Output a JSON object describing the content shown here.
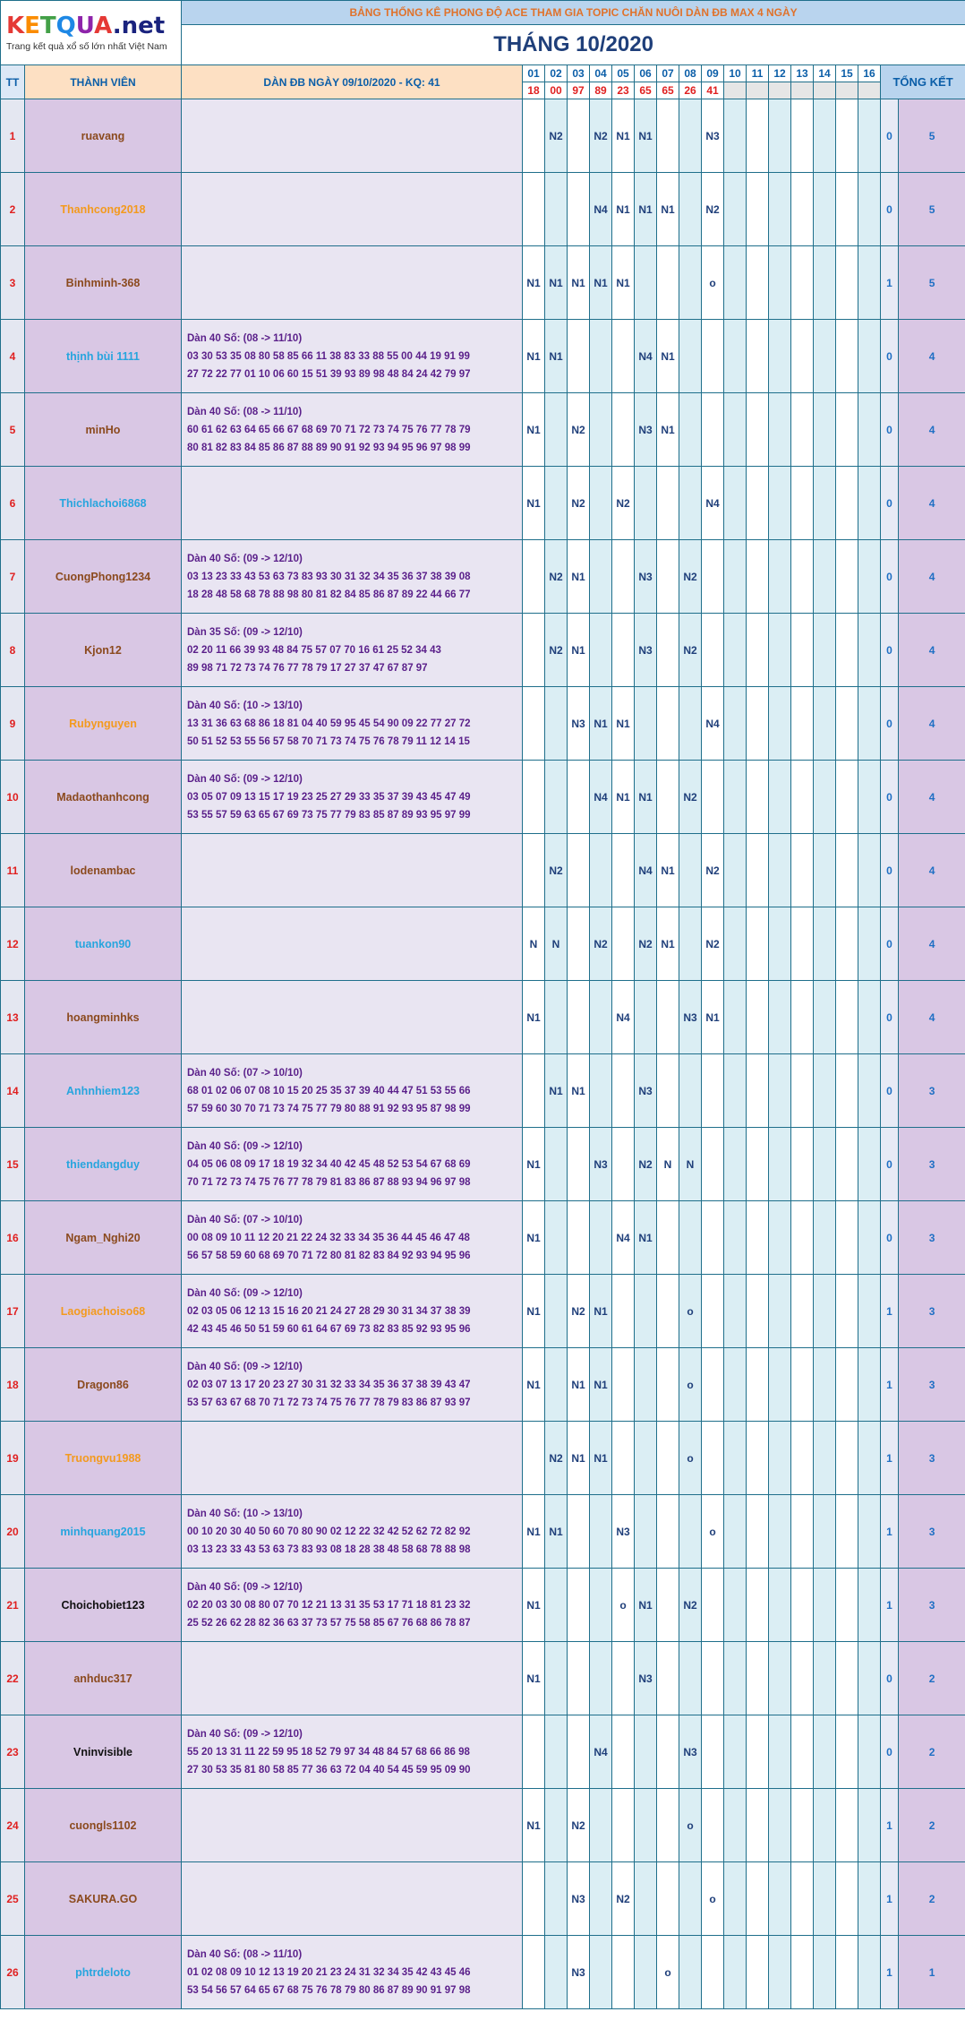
{
  "logo": {
    "text": "KETQUA.net",
    "letters": [
      {
        "ch": "K",
        "color": "#e53935"
      },
      {
        "ch": "E",
        "color": "#fb8c00"
      },
      {
        "ch": "T",
        "color": "#43a047"
      },
      {
        "ch": "Q",
        "color": "#1e88e5"
      },
      {
        "ch": "U",
        "color": "#8e24aa"
      },
      {
        "ch": "A",
        "color": "#e53935"
      },
      {
        "ch": ".net",
        "color": "#1a237e"
      }
    ],
    "tagline": "Trang kết quả xổ số lớn nhất Việt Nam"
  },
  "banner": "BẢNG THỐNG KÊ PHONG ĐỘ ACE THAM GIA TOPIC CHĂN NUÔI DÀN ĐB MAX 4 NGÀY",
  "month": "THÁNG 10/2020",
  "headers": {
    "tt": "TT",
    "member": "THÀNH VIÊN",
    "dan": "DÀN ĐB NGÀY 09/10/2020 - KQ: 41",
    "total": "TỔNG KẾT"
  },
  "days": [
    "01",
    "02",
    "03",
    "04",
    "05",
    "06",
    "07",
    "08",
    "09",
    "10",
    "11",
    "12",
    "13",
    "14",
    "15",
    "16"
  ],
  "results": [
    "18",
    "00",
    "97",
    "89",
    "23",
    "65",
    "65",
    "26",
    "41",
    "",
    "",
    "",
    "",
    "",
    "",
    ""
  ],
  "rows": [
    {
      "tt": "1",
      "name": "ruavang",
      "color": "brown",
      "dan_header": "",
      "dan_numbers": "",
      "marks": [
        "",
        "N2",
        "",
        "N2",
        "N1",
        "N1",
        "",
        "",
        "N3",
        "",
        "",
        "",
        "",
        "",
        "",
        ""
      ],
      "win": "0",
      "total": "5"
    },
    {
      "tt": "2",
      "name": "Thanhcong2018",
      "color": "orange",
      "dan_header": "",
      "dan_numbers": "",
      "marks": [
        "",
        "",
        "",
        "N4",
        "N1",
        "N1",
        "N1",
        "",
        "N2",
        "",
        "",
        "",
        "",
        "",
        "",
        ""
      ],
      "win": "0",
      "total": "5"
    },
    {
      "tt": "3",
      "name": "Binhminh-368",
      "color": "brown",
      "dan_header": "",
      "dan_numbers": "",
      "marks": [
        "N1",
        "N1",
        "N1",
        "N1",
        "N1",
        "",
        "",
        "",
        "o",
        "",
        "",
        "",
        "",
        "",
        "",
        ""
      ],
      "win": "1",
      "total": "5"
    },
    {
      "tt": "4",
      "name": "thịnh bùi 1111",
      "color": "blue",
      "dan_header": "Dàn 40 Số: (08 -> 11/10)",
      "dan_numbers": "03 30 53 35 08 80 58 85 66 11 38 83 33 88 55 00 44 19 91 99 27 72 22 77 01 10 06 60 15 51 39 93 89 98 48 84 24 42 79 97",
      "marks": [
        "N1",
        "N1",
        "",
        "",
        "",
        "N4",
        "N1",
        "",
        "",
        "",
        "",
        "",
        "",
        "",
        "",
        ""
      ],
      "win": "0",
      "total": "4"
    },
    {
      "tt": "5",
      "name": "minHo",
      "color": "brown",
      "dan_header": "Dàn 40 Số: (08 -> 11/10)",
      "dan_numbers": "60 61 62 63 64 65 66 67 68 69 70 71 72 73 74 75 76 77 78 79 80 81 82 83 84 85 86 87 88 89 90 91 92 93 94 95 96 97 98 99",
      "marks": [
        "N1",
        "",
        "N2",
        "",
        "",
        "N3",
        "N1",
        "",
        "",
        "",
        "",
        "",
        "",
        "",
        "",
        ""
      ],
      "win": "0",
      "total": "4"
    },
    {
      "tt": "6",
      "name": "Thichlachoi6868",
      "color": "blue",
      "dan_header": "",
      "dan_numbers": "",
      "marks": [
        "N1",
        "",
        "N2",
        "",
        "N2",
        "",
        "",
        "",
        "N4",
        "",
        "",
        "",
        "",
        "",
        "",
        ""
      ],
      "win": "0",
      "total": "4"
    },
    {
      "tt": "7",
      "name": "CuongPhong1234",
      "color": "brown",
      "dan_header": "Dàn 40 Số: (09 -> 12/10)",
      "dan_numbers": "03 13 23 33 43 53 63 73 83 93 30 31 32 34 35 36 37 38 39 08 18 28 48 58 68 78 88 98 80 81 82 84 85 86 87 89 22 44 66 77",
      "marks": [
        "",
        "N2",
        "N1",
        "",
        "",
        "N3",
        "",
        "N2",
        "",
        "",
        "",
        "",
        "",
        "",
        "",
        ""
      ],
      "win": "0",
      "total": "4"
    },
    {
      "tt": "8",
      "name": "Kjon12",
      "color": "brown",
      "dan_header": "Dàn 35 Số: (09 -> 12/10)",
      "dan_numbers": "02 20 11 66 39 93 48 84 75 57 07 70 16 61 25 52 34 43 89 98 71 72 73 74 76 77 78 79 17 27 37 47 67 87 97",
      "marks": [
        "",
        "N2",
        "N1",
        "",
        "",
        "N3",
        "",
        "N2",
        "",
        "",
        "",
        "",
        "",
        "",
        "",
        ""
      ],
      "win": "0",
      "total": "4"
    },
    {
      "tt": "9",
      "name": "Rubynguyen",
      "color": "orange",
      "dan_header": "Dàn 40 Số: (10 -> 13/10)",
      "dan_numbers": "13 31 36 63 68 86 18 81 04 40 59 95 45 54 90 09 22 77 27 72 50 51 52 53 55 56 57 58 70 71 73 74 75 76 78 79 11 12 14 15",
      "marks": [
        "",
        "",
        "N3",
        "N1",
        "N1",
        "",
        "",
        "",
        "N4",
        "",
        "",
        "",
        "",
        "",
        "",
        ""
      ],
      "win": "0",
      "total": "4"
    },
    {
      "tt": "10",
      "name": "Madaothanhcong",
      "color": "brown",
      "dan_header": "Dàn 40 Số: (09 -> 12/10)",
      "dan_numbers": "03 05 07 09 13 15 17 19 23 25 27 29 33 35 37 39 43 45 47 49 53 55 57 59 63 65 67 69 73 75 77 79 83 85 87 89 93 95 97 99",
      "marks": [
        "",
        "",
        "",
        "N4",
        "N1",
        "N1",
        "",
        "N2",
        "",
        "",
        "",
        "",
        "",
        "",
        "",
        ""
      ],
      "win": "0",
      "total": "4"
    },
    {
      "tt": "11",
      "name": "lodenambac",
      "color": "brown",
      "dan_header": "",
      "dan_numbers": "",
      "marks": [
        "",
        "N2",
        "",
        "",
        "",
        "N4",
        "N1",
        "",
        "N2",
        "",
        "",
        "",
        "",
        "",
        "",
        ""
      ],
      "win": "0",
      "total": "4"
    },
    {
      "tt": "12",
      "name": "tuankon90",
      "color": "blue",
      "dan_header": "",
      "dan_numbers": "",
      "marks": [
        "N",
        "N",
        "",
        "N2",
        "",
        "N2",
        "N1",
        "",
        "N2",
        "",
        "",
        "",
        "",
        "",
        "",
        ""
      ],
      "win": "0",
      "total": "4"
    },
    {
      "tt": "13",
      "name": "hoangminhks",
      "color": "brown",
      "dan_header": "",
      "dan_numbers": "",
      "marks": [
        "N1",
        "",
        "",
        "",
        "N4",
        "",
        "",
        "N3",
        "N1",
        "",
        "",
        "",
        "",
        "",
        "",
        ""
      ],
      "win": "0",
      "total": "4"
    },
    {
      "tt": "14",
      "name": "Anhnhiem123",
      "color": "blue",
      "dan_header": "Dàn 40 Số: (07 -> 10/10)",
      "dan_numbers": "68 01 02 06 07 08 10 15 20 25 35 37 39 40 44 47 51 53 55 66 57 59 60 30 70 71 73 74 75 77 79 80 88 91 92 93 95 87 98 99",
      "marks": [
        "",
        "N1",
        "N1",
        "",
        "",
        "N3",
        "",
        "",
        "",
        "",
        "",
        "",
        "",
        "",
        "",
        ""
      ],
      "win": "0",
      "total": "3"
    },
    {
      "tt": "15",
      "name": "thiendangduy",
      "color": "blue",
      "dan_header": "Dàn 40 Số: (09 -> 12/10)",
      "dan_numbers": "04 05 06 08 09 17 18 19 32 34 40 42 45 48 52 53 54 67 68 69 70 71 72 73 74 75 76 77 78 79 81 83 86 87 88 93 94 96 97 98",
      "marks": [
        "N1",
        "",
        "",
        "N3",
        "",
        "N2",
        "N",
        "N",
        "",
        "",
        "",
        "",
        "",
        "",
        "",
        ""
      ],
      "win": "0",
      "total": "3"
    },
    {
      "tt": "16",
      "name": "Ngam_Nghi20",
      "color": "brown",
      "dan_header": "Dàn 40 Số: (07 -> 10/10)",
      "dan_numbers": "00 08 09 10 11 12 20 21 22 24 32 33 34 35 36 44 45 46 47 48 56 57 58 59 60 68 69 70 71 72 80 81 82 83 84 92 93 94 95 96",
      "marks": [
        "N1",
        "",
        "",
        "",
        "N4",
        "N1",
        "",
        "",
        "",
        "",
        "",
        "",
        "",
        "",
        "",
        ""
      ],
      "win": "0",
      "total": "3"
    },
    {
      "tt": "17",
      "name": "Laogiachoiso68",
      "color": "orange",
      "dan_header": "Dàn 40 Số: (09 -> 12/10)",
      "dan_numbers": "02 03 05 06 12 13 15 16 20 21 24 27 28 29 30 31 34 37 38 39 42 43 45 46 50 51 59 60 61 64 67 69 73 82 83 85 92 93 95 96",
      "marks": [
        "N1",
        "",
        "N2",
        "N1",
        "",
        "",
        "",
        "o",
        "",
        "",
        "",
        "",
        "",
        "",
        "",
        ""
      ],
      "win": "1",
      "total": "3"
    },
    {
      "tt": "18",
      "name": "Dragon86",
      "color": "brown",
      "dan_header": "Dàn 40 Số: (09 -> 12/10)",
      "dan_numbers": "02 03 07 13 17 20 23 27 30 31 32 33 34 35 36 37 38 39 43 47 53 57 63 67 68 70 71 72 73 74 75 76 77 78 79 83 86 87 93 97",
      "marks": [
        "N1",
        "",
        "N1",
        "N1",
        "",
        "",
        "",
        "o",
        "",
        "",
        "",
        "",
        "",
        "",
        "",
        ""
      ],
      "win": "1",
      "total": "3"
    },
    {
      "tt": "19",
      "name": "Truongvu1988",
      "color": "orange",
      "dan_header": "",
      "dan_numbers": "",
      "marks": [
        "",
        "N2",
        "N1",
        "N1",
        "",
        "",
        "",
        "o",
        "",
        "",
        "",
        "",
        "",
        "",
        "",
        ""
      ],
      "win": "1",
      "total": "3"
    },
    {
      "tt": "20",
      "name": "minhquang2015",
      "color": "blue",
      "dan_header": "Dàn 40 Số: (10 -> 13/10)",
      "dan_numbers": "00 10 20 30 40 50 60 70 80 90 02 12 22 32 42 52 62 72 82 92 03 13 23 33 43 53 63 73 83 93 08 18 28 38 48 58 68 78 88 98",
      "marks": [
        "N1",
        "N1",
        "",
        "",
        "N3",
        "",
        "",
        "",
        "o",
        "",
        "",
        "",
        "",
        "",
        "",
        ""
      ],
      "win": "1",
      "total": "3"
    },
    {
      "tt": "21",
      "name": "Choichobiet123",
      "color": "black",
      "dan_header": "Dàn 40 Số: (09 -> 12/10)",
      "dan_numbers": "02 20 03 30 08 80 07 70 12 21 13 31 35 53 17 71 18 81 23 32 25 52 26 62 28 82 36 63 37 73 57 75 58 85 67 76 68 86 78 87",
      "marks": [
        "N1",
        "",
        "",
        "",
        "o",
        "N1",
        "",
        "N2",
        "",
        "",
        "",
        "",
        "",
        "",
        "",
        ""
      ],
      "win": "1",
      "total": "3"
    },
    {
      "tt": "22",
      "name": "anhduc317",
      "color": "brown",
      "dan_header": "",
      "dan_numbers": "",
      "marks": [
        "N1",
        "",
        "",
        "",
        "",
        "N3",
        "",
        "",
        "",
        "",
        "",
        "",
        "",
        "",
        "",
        ""
      ],
      "win": "0",
      "total": "2"
    },
    {
      "tt": "23",
      "name": "Vninvisible",
      "color": "black",
      "dan_header": "Dàn 40 Số: (09 -> 12/10)",
      "dan_numbers": "55 20 13 31 11 22 59 95 18 52 79 97 34 48 84 57 68 66 86 98 27 30 53 35 81 80 58 85 77 36 63 72 04 40 54 45 59 95 09 90",
      "marks": [
        "",
        "",
        "",
        "N4",
        "",
        "",
        "",
        "N3",
        "",
        "",
        "",
        "",
        "",
        "",
        "",
        ""
      ],
      "win": "0",
      "total": "2"
    },
    {
      "tt": "24",
      "name": "cuongls1102",
      "color": "brown",
      "dan_header": "",
      "dan_numbers": "",
      "marks": [
        "N1",
        "",
        "N2",
        "",
        "",
        "",
        "",
        "o",
        "",
        "",
        "",
        "",
        "",
        "",
        "",
        ""
      ],
      "win": "1",
      "total": "2"
    },
    {
      "tt": "25",
      "name": "SAKURA.GO",
      "color": "brown",
      "dan_header": "",
      "dan_numbers": "",
      "marks": [
        "",
        "",
        "N3",
        "",
        "N2",
        "",
        "",
        "",
        "o",
        "",
        "",
        "",
        "",
        "",
        "",
        ""
      ],
      "win": "1",
      "total": "2"
    },
    {
      "tt": "26",
      "name": "phtrdeloto",
      "color": "blue",
      "dan_header": "Dàn 40 Số: (08 -> 11/10)",
      "dan_numbers": "01 02 08 09 10 12 13 19 20 21 23 24 31 32 34 35 42 43 45 46 53 54 56 57 64 65 67 68 75 76 78 79 80 86 87 89 90 91 97 98",
      "marks": [
        "",
        "",
        "N3",
        "",
        "",
        "",
        "o",
        "",
        "",
        "",
        "",
        "",
        "",
        "",
        "",
        ""
      ],
      "win": "1",
      "total": "1"
    }
  ]
}
